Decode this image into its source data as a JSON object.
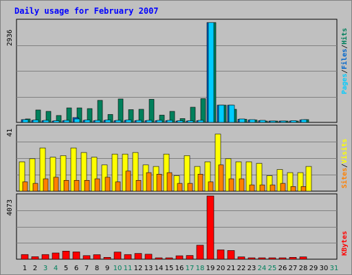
{
  "title": "Daily usage for February 2007",
  "colors": {
    "pages": "#00ccff",
    "files": "#0066cc",
    "hits": "#00805c",
    "visits": "#ffff00",
    "sites": "#ff8000",
    "kbytes": "#ff0000",
    "weekend_label": "#00805c",
    "weekday_label": "#000000"
  },
  "chart_data": [
    {
      "type": "bar",
      "panel": "hits",
      "ymax_label": "2936",
      "legend": [
        "Pages",
        "Files",
        "Hits"
      ],
      "categories": [
        "1",
        "2",
        "3",
        "4",
        "5",
        "6",
        "7",
        "8",
        "9",
        "10",
        "11",
        "12",
        "13",
        "14",
        "15",
        "16",
        "17",
        "18",
        "19",
        "20",
        "21",
        "22",
        "23",
        "24",
        "25",
        "26",
        "27",
        "28"
      ],
      "series": [
        {
          "name": "Pages",
          "values": [
            80,
            70,
            60,
            50,
            60,
            100,
            70,
            60,
            70,
            60,
            70,
            60,
            60,
            60,
            60,
            50,
            50,
            60,
            2900,
            500,
            500,
            100,
            80,
            60,
            40,
            40,
            50,
            80
          ]
        },
        {
          "name": "Files",
          "values": [
            80,
            60,
            50,
            40,
            50,
            140,
            60,
            50,
            60,
            50,
            60,
            50,
            50,
            50,
            50,
            40,
            40,
            50,
            2900,
            500,
            500,
            90,
            70,
            50,
            30,
            30,
            40,
            70
          ]
        },
        {
          "name": "Hits",
          "values": [
            100,
            360,
            320,
            200,
            420,
            420,
            400,
            640,
            230,
            680,
            370,
            380,
            670,
            210,
            320,
            110,
            440,
            690,
            2900,
            500,
            380,
            90,
            70,
            40,
            30,
            30,
            40,
            80
          ]
        }
      ],
      "ylim": [
        0,
        2936
      ]
    },
    {
      "type": "bar",
      "panel": "visits",
      "ymax_label": "41",
      "legend": [
        "Sites",
        "Visits"
      ],
      "categories": [
        "1",
        "2",
        "3",
        "4",
        "5",
        "6",
        "7",
        "8",
        "9",
        "10",
        "11",
        "12",
        "13",
        "14",
        "15",
        "16",
        "17",
        "18",
        "19",
        "20",
        "21",
        "22",
        "23",
        "24",
        "25",
        "26",
        "27",
        "28"
      ],
      "series": [
        {
          "name": "Visits",
          "values": [
            19,
            21,
            28,
            22,
            23,
            28,
            25,
            22,
            17,
            24,
            24,
            25,
            17,
            16,
            24,
            10,
            23,
            16,
            19,
            37,
            21,
            19,
            19,
            18,
            10,
            14,
            12,
            12
          ]
        },
        {
          "name": "Sites",
          "values": [
            6,
            5,
            8,
            9,
            7,
            7,
            7,
            8,
            9,
            6,
            13,
            7,
            12,
            11,
            12,
            5,
            5,
            11,
            6,
            17,
            8,
            8,
            4,
            4,
            4,
            5,
            3,
            3
          ]
        }
      ],
      "extra_visits": {
        "day": "28",
        "value": 16
      },
      "ylim": [
        0,
        41
      ]
    },
    {
      "type": "bar",
      "panel": "kbytes",
      "ymax_label": "4073",
      "legend": [
        "KBytes"
      ],
      "categories": [
        "1",
        "2",
        "3",
        "4",
        "5",
        "6",
        "7",
        "8",
        "9",
        "10",
        "11",
        "12",
        "13",
        "14",
        "15",
        "16",
        "17",
        "18",
        "19",
        "20",
        "21",
        "22",
        "23",
        "24",
        "25",
        "26",
        "27",
        "28"
      ],
      "series": [
        {
          "name": "KBytes",
          "values": [
            300,
            160,
            300,
            400,
            520,
            470,
            230,
            290,
            120,
            460,
            300,
            370,
            320,
            80,
            80,
            220,
            240,
            900,
            4073,
            600,
            560,
            150,
            60,
            50,
            30,
            30,
            120,
            150
          ]
        }
      ],
      "ylim": [
        0,
        4073
      ]
    }
  ],
  "days": [
    "1",
    "2",
    "3",
    "4",
    "5",
    "6",
    "7",
    "8",
    "9",
    "10",
    "11",
    "12",
    "13",
    "14",
    "15",
    "16",
    "17",
    "18",
    "19",
    "20",
    "21",
    "22",
    "23",
    "24",
    "25",
    "26",
    "27",
    "28",
    "29",
    "30",
    "31"
  ],
  "weekend_days": [
    "3",
    "4",
    "10",
    "11",
    "17",
    "18",
    "24",
    "25",
    "31"
  ]
}
